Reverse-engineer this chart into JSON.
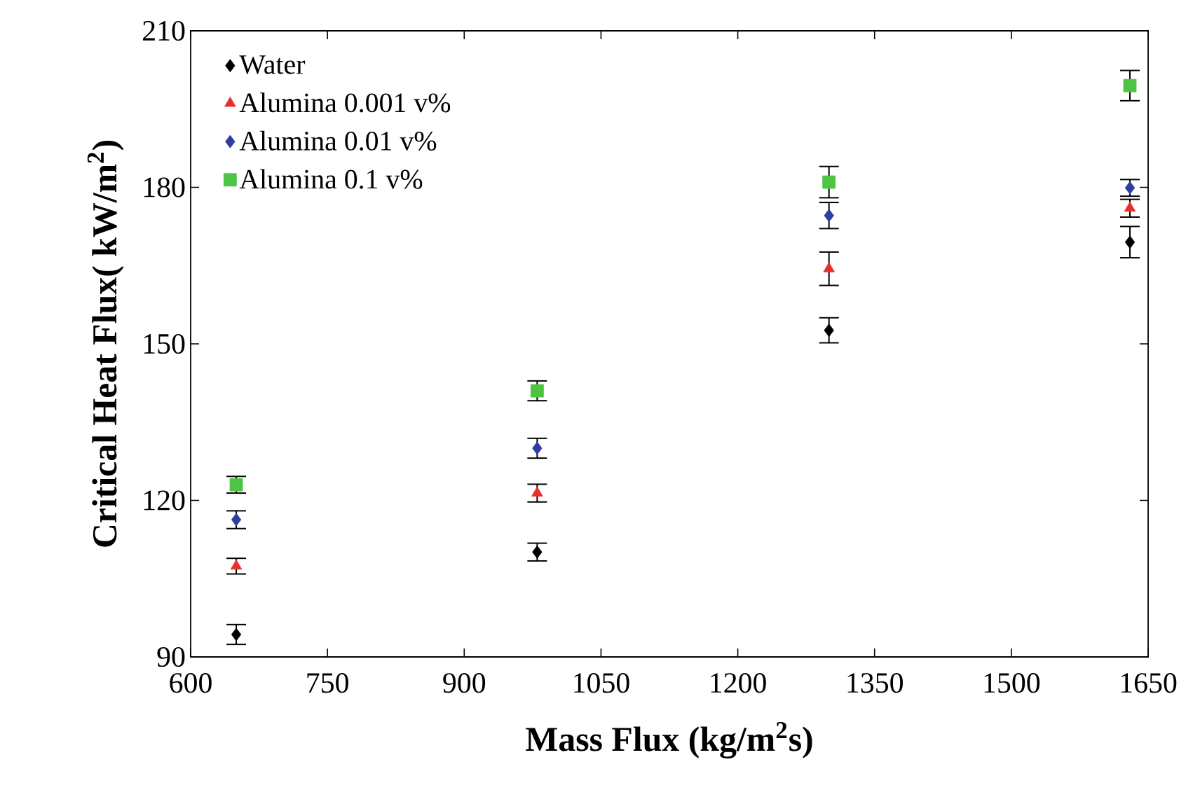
{
  "chart_data": {
    "type": "scatter",
    "xlabel": "Mass Flux (kg/m$^{2}$s)",
    "ylabel": "Critical Heat Flux( kW/m$^{2}$)",
    "x": [
      650,
      980,
      1300,
      1630
    ],
    "series": [
      {
        "name": "Water",
        "color": "#000000",
        "marker": "diamond",
        "values": [
          94.3,
          110.1,
          152.6,
          169.5
        ],
        "errors": [
          1.9,
          1.7,
          2.4,
          3.0
        ]
      },
      {
        "name": "Alumina 0.001 v%",
        "color": "#e8302a",
        "marker": "triangle",
        "values": [
          107.4,
          121.4,
          164.4,
          176.0
        ],
        "errors": [
          1.5,
          1.7,
          3.2,
          1.7
        ]
      },
      {
        "name": "Alumina 0.01 v%",
        "color": "#2e3d9f",
        "marker": "diamond",
        "values": [
          116.3,
          130.0,
          174.6,
          179.9
        ],
        "errors": [
          1.7,
          1.9,
          2.5,
          1.6
        ]
      },
      {
        "name": "Alumina 0.1 v%",
        "color": "#4ec444",
        "marker": "square",
        "values": [
          123.0,
          141.0,
          181.0,
          199.5
        ],
        "errors": [
          1.6,
          1.9,
          3.0,
          2.9
        ]
      }
    ],
    "xlim": [
      600,
      1650
    ],
    "xticks": [
      600,
      750,
      900,
      1050,
      1200,
      1350,
      1500,
      1650
    ],
    "ylim": [
      90,
      210
    ],
    "yticks": [
      90,
      120,
      150,
      180,
      210
    ],
    "grid": false,
    "legend": "top left"
  }
}
